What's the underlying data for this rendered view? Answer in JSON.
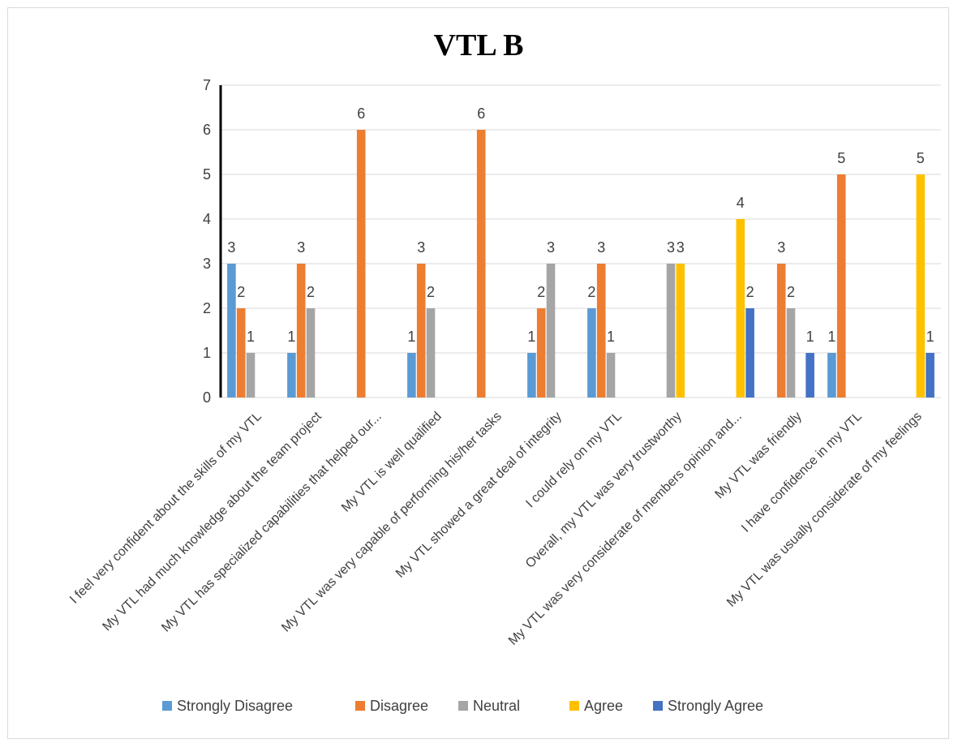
{
  "chart_data": {
    "type": "bar",
    "title": "VTL B",
    "xlabel": "",
    "ylabel": "",
    "ylim": [
      0,
      7
    ],
    "yticks": [
      0,
      1,
      2,
      3,
      4,
      5,
      6,
      7
    ],
    "grid": true,
    "legend_position": "bottom",
    "categories": [
      "I feel very confident about the skills of my VTL",
      "My VTL had much knowledge about the team project",
      "My VTL has specialized capabilities that helped our...",
      "My VTL is well qualified",
      "My VTL was very capable of performing his/her tasks",
      "My VTL showed a great deal of integrity",
      "I could rely on my VTL",
      "Overall, my VTL was very trustworthy",
      "My VTL was very considerate of members opinion and...",
      "My VTL was friendly",
      "I have confidence in my VTL",
      "My VTL was usually considerate of my feelings"
    ],
    "series": [
      {
        "name": "Strongly Disagree",
        "color": "#5b9bd5",
        "values": [
          3,
          1,
          null,
          1,
          null,
          1,
          2,
          null,
          null,
          null,
          1,
          null
        ]
      },
      {
        "name": "Disagree",
        "color": "#ed7d31",
        "values": [
          2,
          3,
          6,
          3,
          6,
          2,
          3,
          null,
          null,
          3,
          5,
          null
        ]
      },
      {
        "name": "Neutral",
        "color": "#a5a5a5",
        "values": [
          1,
          2,
          null,
          2,
          null,
          3,
          1,
          3,
          null,
          2,
          null,
          null
        ]
      },
      {
        "name": "Agree",
        "color": "#ffc000",
        "values": [
          null,
          null,
          null,
          null,
          null,
          null,
          null,
          3,
          4,
          null,
          null,
          5
        ]
      },
      {
        "name": "Strongly Agree",
        "color": "#4472c4",
        "values": [
          null,
          null,
          null,
          null,
          null,
          null,
          null,
          null,
          2,
          1,
          null,
          1
        ]
      }
    ]
  }
}
